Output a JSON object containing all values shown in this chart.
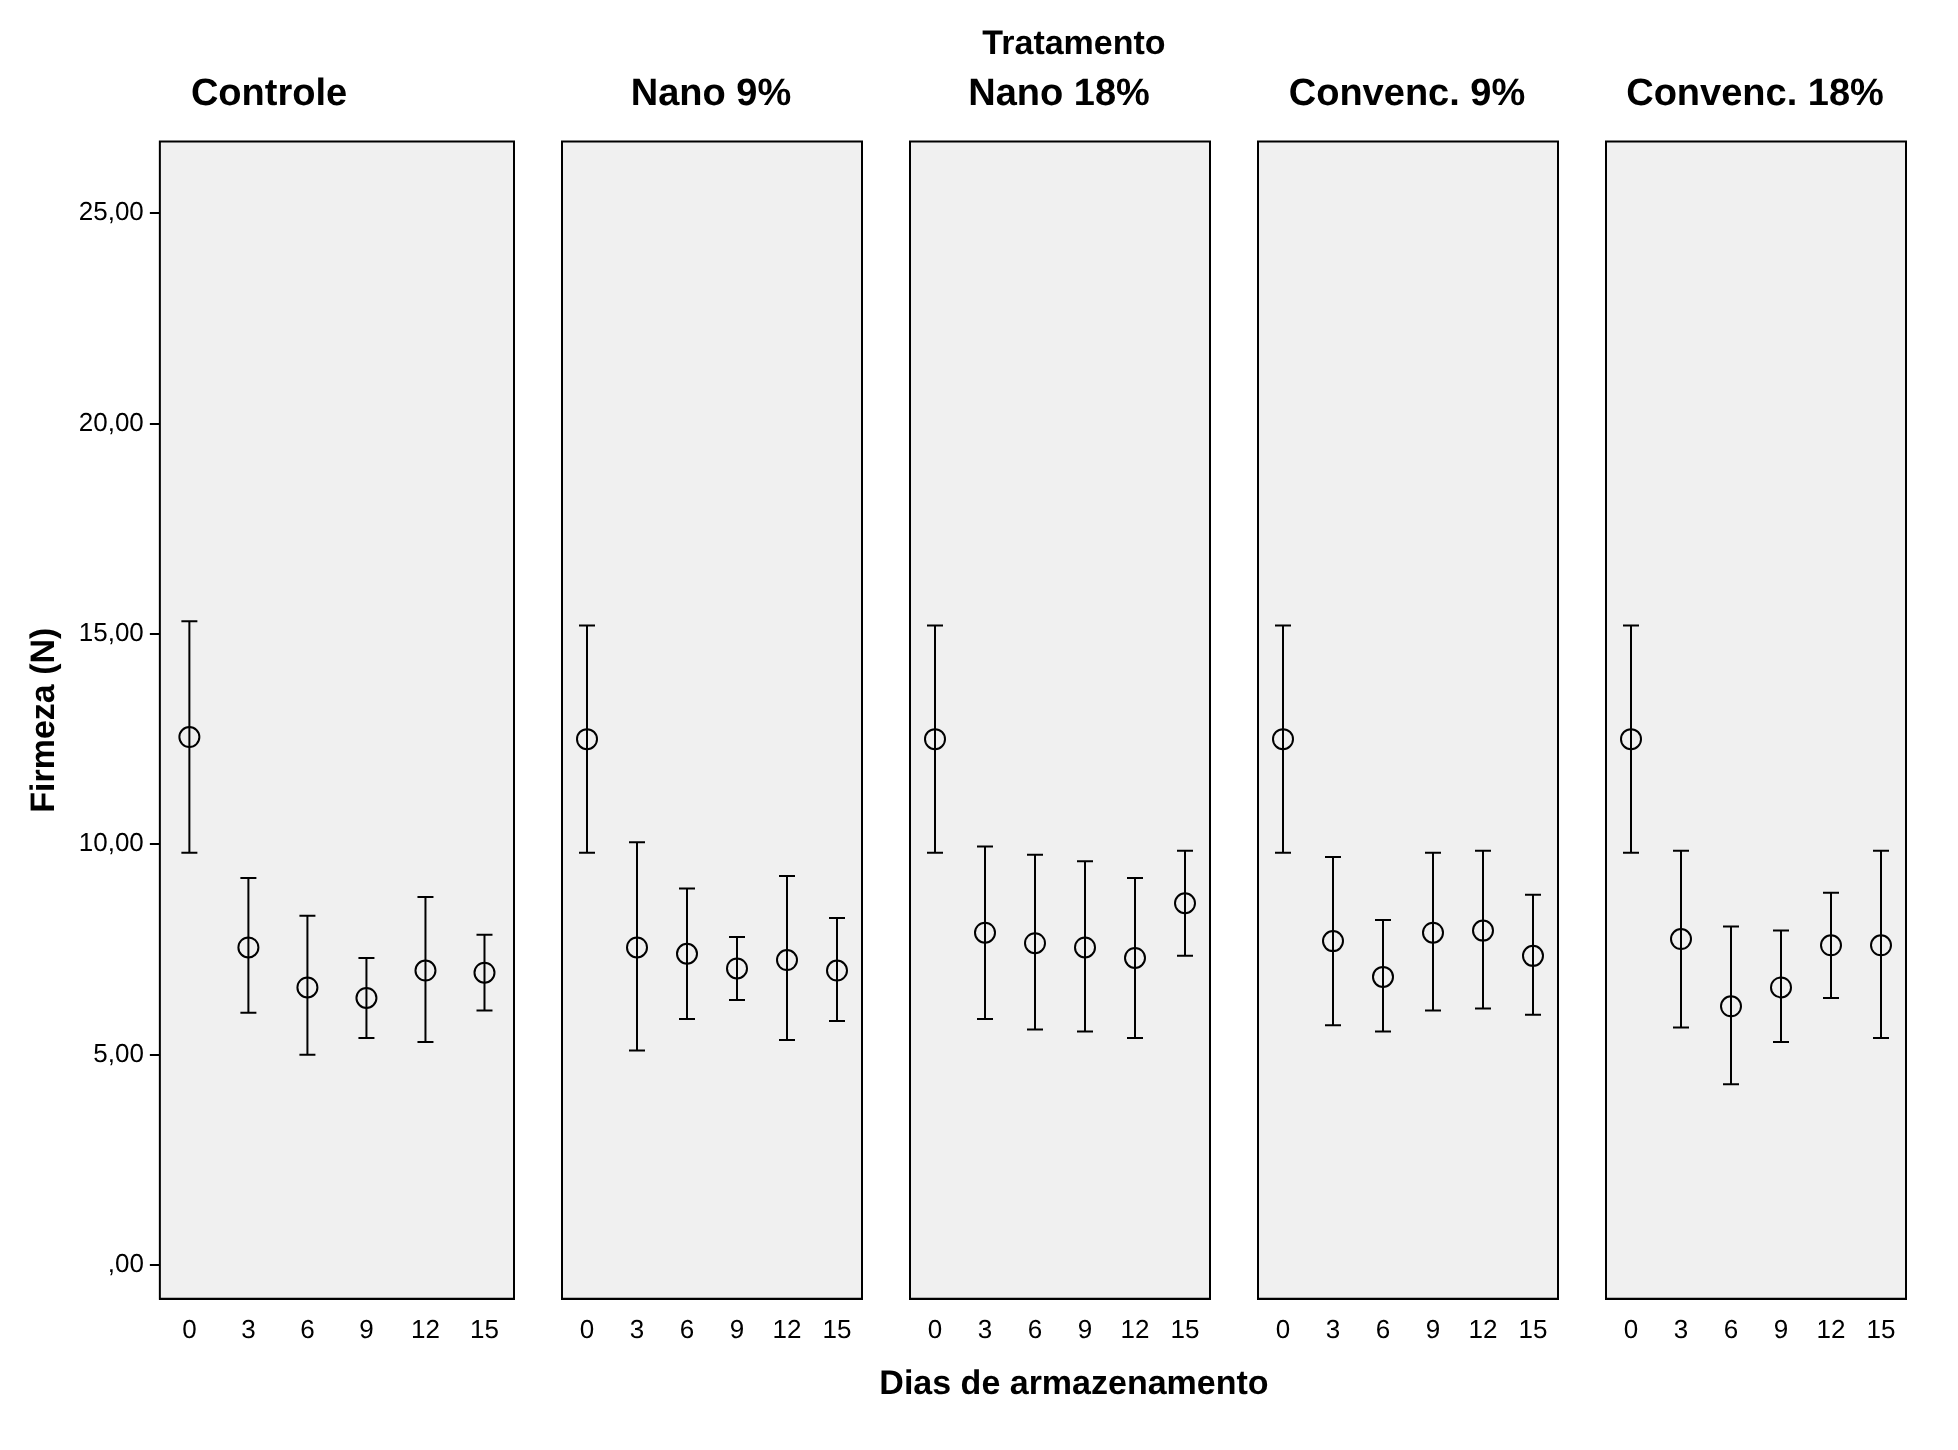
{
  "chart_data": [
    {
      "type": "scatter",
      "title": "Controle",
      "ylabel": "Firmeza (N)",
      "categories": [
        "0",
        "3",
        "6",
        "9",
        "12",
        "15"
      ],
      "values": [
        12.55,
        7.55,
        6.6,
        6.35,
        7.0,
        6.95
      ],
      "errors": [
        [
          9.8,
          15.3
        ],
        [
          6.0,
          9.2
        ],
        [
          5.0,
          8.3
        ],
        [
          5.4,
          7.3
        ],
        [
          5.3,
          8.75
        ],
        [
          6.05,
          7.85
        ]
      ],
      "color": "#000000",
      "marker": "circle",
      "ylim": [
        -0.8,
        26.7
      ],
      "yticks": [
        {
          "value": 0,
          "label": ",00"
        },
        {
          "value": 5,
          "label": "5,00"
        },
        {
          "value": 10,
          "label": "10,00"
        },
        {
          "value": 15,
          "label": "15,00"
        },
        {
          "value": 20,
          "label": "20,00"
        },
        {
          "value": 25,
          "label": "25,00"
        }
      ]
    },
    {
      "type": "scatter",
      "title": "Nano 9%",
      "categories": [
        "0",
        "3",
        "6",
        "9",
        "12",
        "15"
      ],
      "values": [
        12.5,
        7.55,
        7.4,
        7.05,
        7.25,
        7.0
      ],
      "errors": [
        [
          9.8,
          15.2
        ],
        [
          5.1,
          10.05
        ],
        [
          5.85,
          8.95
        ],
        [
          6.3,
          7.8
        ],
        [
          5.35,
          9.25
        ],
        [
          5.8,
          8.25
        ]
      ],
      "color": "#000000",
      "marker": "circle",
      "ylim": [
        -0.8,
        26.7
      ],
      "tick_labels": "x"
    },
    {
      "type": "scatter",
      "title": "Nano 18%",
      "xlabel": "Dias de armazenamento",
      "annotations": [
        "Tratamento"
      ],
      "categories": [
        "0",
        "3",
        "6",
        "9",
        "12",
        "15"
      ],
      "values": [
        12.5,
        7.9,
        7.65,
        7.55,
        7.3,
        8.6
      ],
      "errors": [
        [
          9.8,
          15.2
        ],
        [
          5.85,
          9.95
        ],
        [
          5.6,
          9.75
        ],
        [
          5.55,
          9.6
        ],
        [
          5.4,
          9.2
        ],
        [
          7.35,
          9.85
        ]
      ],
      "color": "#000000",
      "marker": "circle",
      "ylim": [
        -0.8,
        26.7
      ],
      "tick_labels": "x"
    },
    {
      "type": "scatter",
      "title": "Convenc. 9%",
      "categories": [
        "0",
        "3",
        "6",
        "9",
        "12",
        "15"
      ],
      "values": [
        12.5,
        7.7,
        6.85,
        7.9,
        7.95,
        7.35
      ],
      "errors": [
        [
          9.8,
          15.2
        ],
        [
          5.7,
          9.7
        ],
        [
          5.55,
          8.2
        ],
        [
          6.05,
          9.8
        ],
        [
          6.1,
          9.85
        ],
        [
          5.95,
          8.8
        ]
      ],
      "color": "#000000",
      "marker": "circle",
      "ylim": [
        -0.8,
        26.7
      ],
      "tick_labels": "x"
    },
    {
      "type": "scatter",
      "title": "Convenc. 18%",
      "categories": [
        "0",
        "3",
        "6",
        "9",
        "12",
        "15"
      ],
      "values": [
        12.5,
        7.75,
        6.15,
        6.6,
        7.6,
        7.6
      ],
      "errors": [
        [
          9.8,
          15.2
        ],
        [
          5.65,
          9.85
        ],
        [
          4.3,
          8.05
        ],
        [
          5.3,
          7.95
        ],
        [
          6.35,
          8.85
        ],
        [
          5.4,
          9.85
        ]
      ],
      "color": "#000000",
      "marker": "circle",
      "ylim": [
        -0.8,
        26.7
      ],
      "tick_labels": "x"
    }
  ]
}
